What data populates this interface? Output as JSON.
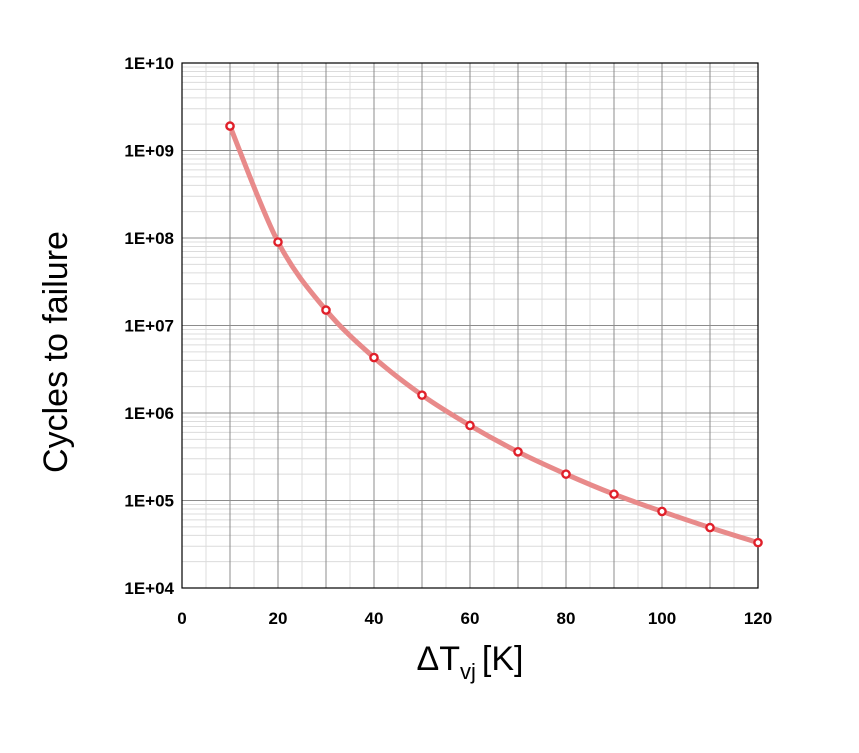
{
  "chart_data": {
    "type": "line",
    "title": "",
    "xlabel": "ΔT",
    "xlabel_subscript": "vj",
    "xlabel_unit": "[K]",
    "ylabel": "Cycles to failure",
    "y_scale": "log",
    "xlim": [
      0,
      120
    ],
    "ylim": [
      10000,
      10000000000
    ],
    "x_ticks": [
      0,
      20,
      40,
      60,
      80,
      100,
      120
    ],
    "x_tick_labels": [
      "0",
      "20",
      "40",
      "60",
      "80",
      "100",
      "120"
    ],
    "y_ticks": [
      10000,
      100000,
      1000000,
      10000000,
      100000000,
      1000000000,
      10000000000
    ],
    "y_tick_labels": [
      "1E+04",
      "1E+05",
      "1E+06",
      "1E+07",
      "1E+08",
      "1E+09",
      "1E+10"
    ],
    "grid": true,
    "legend": "none",
    "series": [
      {
        "color": "#e88a8a",
        "marker_color": "#e0202a",
        "x": [
          10,
          20,
          30,
          40,
          50,
          60,
          70,
          80,
          90,
          100,
          110,
          120
        ],
        "y": [
          1900000000,
          90000000,
          15000000,
          4300000,
          1600000,
          720000,
          360000,
          200000,
          118000,
          75000,
          49000,
          33000
        ]
      }
    ]
  }
}
